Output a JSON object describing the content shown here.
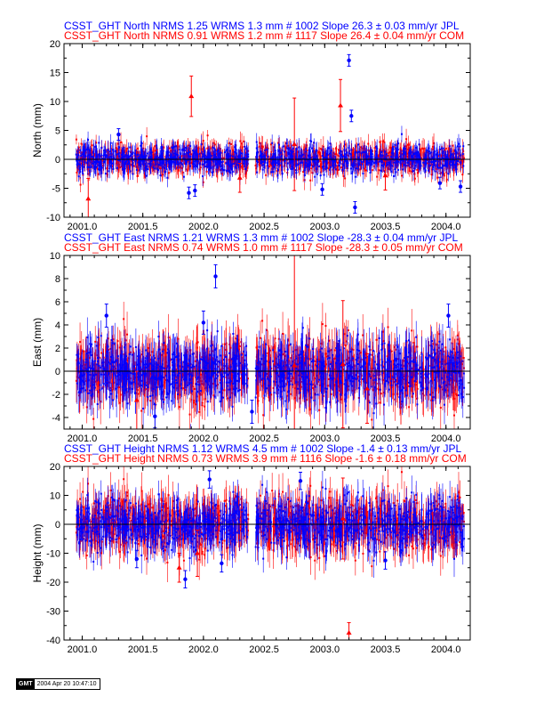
{
  "chart_data": [
    {
      "type": "scatter",
      "title_lines": [
        {
          "text": "CSST_GHT North NRMS 1.25 WRMS  1.3 mm # 1002 Slope   26.3 ±  0.03 mm/yr JPL",
          "color": "#0000ff"
        },
        {
          "text": "CSST_GHT North NRMS 0.91 WRMS  1.2 mm # 1117 Slope   26.4 ±  0.04 mm/yr COM",
          "color": "#ff0000"
        }
      ],
      "ylabel": "North (mm)",
      "xlim": [
        2000.85,
        2004.2
      ],
      "ylim": [
        -10,
        20
      ],
      "yticks": [
        -10,
        -5,
        0,
        5,
        10,
        15,
        20
      ],
      "xticks": [
        2001.0,
        2001.5,
        2002.0,
        2002.5,
        2003.0,
        2003.5,
        2004.0
      ],
      "xtick_labels": [
        "2001.0",
        "2001.5",
        "2002.0",
        "2002.5",
        "2003.0",
        "2003.5",
        "2004.0"
      ],
      "spread": 1.2,
      "series": [
        {
          "color": "#ff0000",
          "marker": "triangle",
          "points": [
            [
              2001.05,
              -6.8,
              3.5
            ],
            [
              2001.9,
              10.9,
              3.5
            ],
            [
              2002.3,
              -3.2,
              2.5
            ],
            [
              2002.75,
              2.6,
              8
            ],
            [
              2003.13,
              9.3,
              4.5
            ],
            [
              2003.5,
              -2.8,
              2.5
            ]
          ]
        },
        {
          "color": "#0000ff",
          "marker": "circle",
          "points": [
            [
              2001.3,
              4.3,
              1
            ],
            [
              2001.88,
              -5.8,
              1
            ],
            [
              2001.93,
              -5.4,
              1
            ],
            [
              2002.98,
              -5.2,
              1
            ],
            [
              2003.2,
              17.1,
              1
            ],
            [
              2003.22,
              7.5,
              1
            ],
            [
              2003.25,
              -8.3,
              1
            ],
            [
              2003.95,
              -4.1,
              1
            ],
            [
              2004.12,
              -4.7,
              1
            ]
          ]
        }
      ]
    },
    {
      "type": "scatter",
      "title_lines": [
        {
          "text": "CSST_GHT East NRMS 1.21 WRMS  1.3 mm # 1002 Slope  -28.3 ±  0.04 mm/yr JPL",
          "color": "#0000ff"
        },
        {
          "text": "CSST_GHT East NRMS 0.74 WRMS  1.0 mm # 1117 Slope  -28.3 ±  0.05 mm/yr COM",
          "color": "#ff0000"
        }
      ],
      "ylabel": "East (mm)",
      "xlim": [
        2000.85,
        2004.2
      ],
      "ylim": [
        -5,
        10
      ],
      "yticks": [
        -4,
        -2,
        0,
        2,
        4,
        6,
        8,
        10
      ],
      "xticks": [
        2001.0,
        2001.5,
        2002.0,
        2002.5,
        2003.0,
        2003.5,
        2004.0
      ],
      "xtick_labels": [
        "2001.0",
        "2001.5",
        "2002.0",
        "2002.5",
        "2003.0",
        "2003.5",
        "2004.0"
      ],
      "spread": 1.3,
      "series": [
        {
          "color": "#ff0000",
          "marker": "triangle",
          "points": [
            [
              2002.75,
              0.5,
              10
            ],
            [
              2003.15,
              0.6,
              5.5
            ],
            [
              2003.35,
              -1.5,
              3
            ],
            [
              2001.45,
              -2.5,
              2.5
            ]
          ]
        },
        {
          "color": "#0000ff",
          "marker": "circle",
          "points": [
            [
              2001.2,
              4.8,
              1
            ],
            [
              2002.1,
              8.2,
              1
            ],
            [
              2002.0,
              4.2,
              1
            ],
            [
              2004.02,
              4.8,
              1
            ],
            [
              2002.4,
              -3.5,
              1
            ],
            [
              2001.6,
              -3.9,
              1
            ]
          ]
        }
      ]
    },
    {
      "type": "scatter",
      "title_lines": [
        {
          "text": "CSST_GHT Height NRMS 1.12 WRMS  4.5 mm # 1002 Slope   -1.4 ±  0.13 mm/yr JPL",
          "color": "#0000ff"
        },
        {
          "text": "CSST_GHT Height NRMS 0.73 WRMS  3.9 mm # 1116 Slope   -1.6 ±  0.18 mm/yr COM",
          "color": "#ff0000"
        }
      ],
      "ylabel": "Height (mm)",
      "xlim": [
        2000.85,
        2004.2
      ],
      "ylim": [
        -40,
        20
      ],
      "yticks": [
        -40,
        -30,
        -20,
        -10,
        0,
        10,
        20
      ],
      "xticks": [
        2001.0,
        2001.5,
        2002.0,
        2002.5,
        2003.0,
        2003.5,
        2004.0
      ],
      "xtick_labels": [
        "2001.0",
        "2001.5",
        "2002.0",
        "2002.5",
        "2003.0",
        "2003.5",
        "2004.0"
      ],
      "spread": 4.5,
      "series": [
        {
          "color": "#ff0000",
          "marker": "triangle",
          "points": [
            [
              2003.2,
              -37.5,
              3.5
            ],
            [
              2001.95,
              -10.0,
              8
            ],
            [
              2003.15,
              2.0,
              14
            ],
            [
              2001.8,
              -15.0,
              5
            ]
          ]
        },
        {
          "color": "#0000ff",
          "marker": "circle",
          "points": [
            [
              2001.85,
              -19.0,
              3
            ],
            [
              2002.05,
              15.5,
              3
            ],
            [
              2002.8,
              15.0,
              3
            ],
            [
              2001.45,
              -12.0,
              3
            ],
            [
              2003.5,
              -12.5,
              3
            ],
            [
              2002.15,
              -13.5,
              3
            ]
          ]
        }
      ]
    }
  ],
  "footer": {
    "logo_text": "GMT",
    "timestamp": "2004 Apr 20 10:47:10"
  }
}
